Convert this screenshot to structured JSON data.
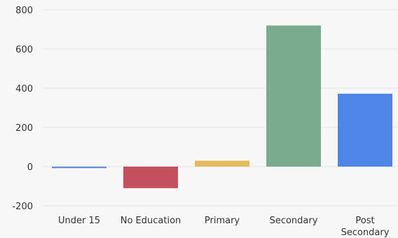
{
  "chart_data": {
    "type": "bar",
    "title": "",
    "xlabel": "",
    "ylabel": "",
    "categories": [
      "Under 15",
      "No Education",
      "Primary",
      "Secondary",
      "Post Secondary"
    ],
    "values": [
      -8,
      -110,
      30,
      720,
      372
    ],
    "colors": [
      "#5b8ee6",
      "#c4505e",
      "#e3bd5c",
      "#7aab8e",
      "#4f86e8"
    ],
    "ylim": [
      -200,
      800
    ],
    "yticks": [
      "800",
      "600",
      "400",
      "200",
      "0",
      "-200"
    ],
    "grid": true,
    "legend": "none"
  }
}
